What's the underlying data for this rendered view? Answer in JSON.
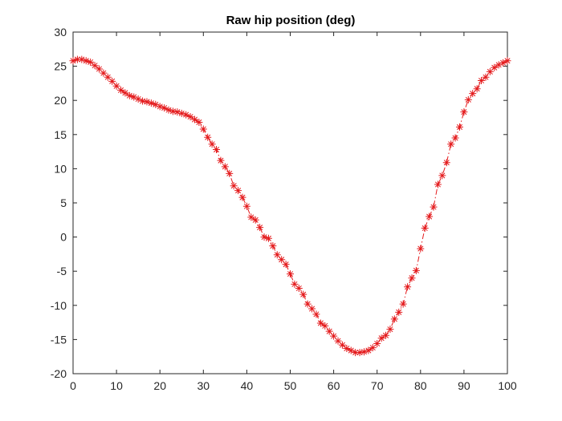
{
  "chart_data": {
    "type": "line",
    "title": "Raw hip position (deg)",
    "xlabel": "",
    "ylabel": "",
    "xlim": [
      0,
      100
    ],
    "ylim": [
      -20,
      30
    ],
    "xticks": [
      0,
      10,
      20,
      30,
      40,
      50,
      60,
      70,
      80,
      90,
      100
    ],
    "yticks": [
      -20,
      -15,
      -10,
      -5,
      0,
      5,
      10,
      15,
      20,
      25,
      30
    ],
    "grid": false,
    "legend": "none",
    "series": [
      {
        "marker": "asterisk",
        "line_style": "dash-dot",
        "color": "#e41a1c",
        "x": [
          0,
          1,
          2,
          3,
          4,
          5,
          6,
          7,
          8,
          9,
          10,
          11,
          12,
          13,
          14,
          15,
          16,
          17,
          18,
          19,
          20,
          21,
          22,
          23,
          24,
          25,
          26,
          27,
          28,
          29,
          30,
          31,
          32,
          33,
          34,
          35,
          36,
          37,
          38,
          39,
          40,
          41,
          42,
          43,
          44,
          45,
          46,
          47,
          48,
          49,
          50,
          51,
          52,
          53,
          54,
          55,
          56,
          57,
          58,
          59,
          60,
          61,
          62,
          63,
          64,
          65,
          66,
          67,
          68,
          69,
          70,
          71,
          72,
          73,
          74,
          75,
          76,
          77,
          78,
          79,
          80,
          81,
          82,
          83,
          84,
          85,
          86,
          87,
          88,
          89,
          90,
          91,
          92,
          93,
          94,
          95,
          96,
          97,
          98,
          99,
          100
        ],
        "y": [
          25.8,
          26.0,
          26.0,
          25.8,
          25.6,
          25.1,
          24.6,
          24.0,
          23.4,
          22.8,
          22.1,
          21.5,
          21.1,
          20.7,
          20.5,
          20.2,
          19.9,
          19.8,
          19.6,
          19.4,
          19.1,
          18.9,
          18.6,
          18.4,
          18.3,
          18.1,
          17.9,
          17.6,
          17.2,
          16.8,
          15.8,
          14.6,
          13.6,
          12.8,
          11.2,
          10.3,
          9.3,
          7.5,
          6.8,
          5.8,
          4.5,
          2.9,
          2.5,
          1.4,
          0.0,
          -0.2,
          -1.3,
          -2.6,
          -3.3,
          -4.0,
          -5.4,
          -6.9,
          -7.5,
          -8.4,
          -9.8,
          -10.5,
          -11.3,
          -12.6,
          -13.0,
          -13.8,
          -14.5,
          -15.2,
          -15.8,
          -16.3,
          -16.6,
          -16.9,
          -16.9,
          -16.8,
          -16.6,
          -16.2,
          -15.6,
          -14.8,
          -14.4,
          -13.5,
          -12.0,
          -11.0,
          -9.8,
          -7.3,
          -6.0,
          -4.9,
          -1.7,
          1.3,
          3.0,
          4.4,
          7.7,
          9.0,
          10.9,
          13.6,
          14.5,
          16.1,
          18.3,
          20.1,
          21.0,
          21.7,
          22.9,
          23.4,
          24.2,
          24.8,
          25.2,
          25.5,
          25.8
        ]
      }
    ]
  }
}
